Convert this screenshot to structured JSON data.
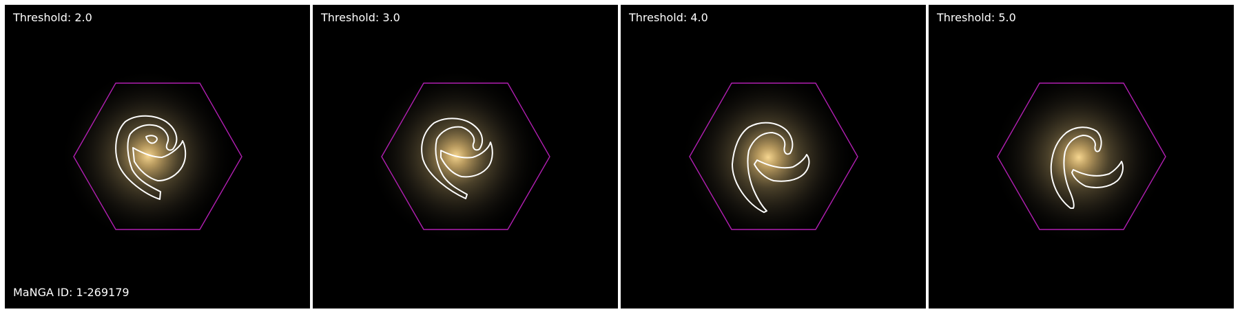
{
  "object_id_label": "MaNGA ID: 1-269179",
  "colors": {
    "background": "#000000",
    "hexagon": "#b21fb2",
    "contour": "#ffffff",
    "galaxy_core": "#f4d08a",
    "galaxy_halo": "#6b5a3a"
  },
  "panels": [
    {
      "label": "Threshold: 2.0",
      "threshold": 2.0,
      "show_id": true
    },
    {
      "label": "Threshold: 3.0",
      "threshold": 3.0,
      "show_id": false
    },
    {
      "label": "Threshold: 4.0",
      "threshold": 4.0,
      "show_id": false
    },
    {
      "label": "Threshold: 5.0",
      "threshold": 5.0,
      "show_id": false
    }
  ]
}
